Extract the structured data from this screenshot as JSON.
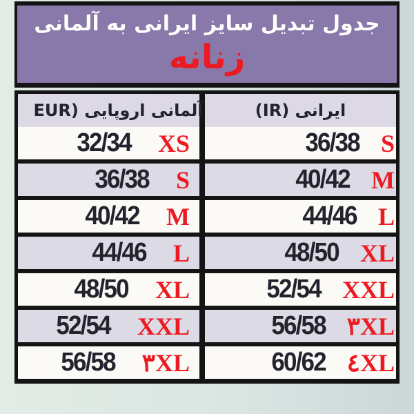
{
  "title": "جدول تبدیل سایز ایرانی به آلمانی",
  "subtitle": "زنانه",
  "chart_data": {
    "type": "table",
    "title": "جدول تبدیل سایز ایرانی به آلمانی",
    "subtitle": "زنانه",
    "columns": [
      {
        "id": "eur",
        "label": "آلمانی اروپایی (EUR"
      },
      {
        "id": "ir",
        "label": "ایرانی (IR)"
      }
    ],
    "rows": [
      {
        "eur_size": "32/34",
        "eur_label": "XS",
        "ir_size": "36/38",
        "ir_label": "S"
      },
      {
        "eur_size": "36/38",
        "eur_label": "S",
        "ir_size": "40/42",
        "ir_label": "M"
      },
      {
        "eur_size": "40/42",
        "eur_label": "M",
        "ir_size": "44/46",
        "ir_label": "L"
      },
      {
        "eur_size": "44/46",
        "eur_label": "L",
        "ir_size": "48/50",
        "ir_label": "XL"
      },
      {
        "eur_size": "48/50",
        "eur_label": "XL",
        "ir_size": "52/54",
        "ir_label": "XXL"
      },
      {
        "eur_size": "52/54",
        "eur_label": "XXL",
        "ir_size": "56/58",
        "ir_label": "۳XL"
      },
      {
        "eur_size": "56/58",
        "eur_label": "۳XL",
        "ir_size": "60/62",
        "ir_label": "٤XL"
      }
    ]
  },
  "colors": {
    "purple": "#8979aa",
    "red": "#ec1b23",
    "border": "#141414",
    "header_bg": "#dcd9e4",
    "row_plain": "#fbfaf6",
    "row_tint": "#dcdae4",
    "ink": "#23232d"
  }
}
